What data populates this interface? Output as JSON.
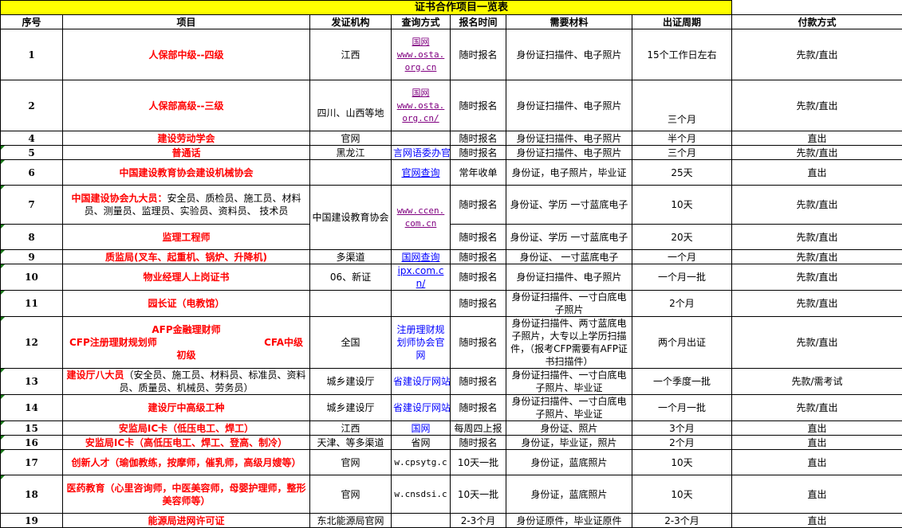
{
  "title": "证书合作项目一览表",
  "headers": [
    "序号",
    "项目",
    "发证机构",
    "查询方式",
    "报名时间",
    "需要材料",
    "出证周期",
    "付款方式"
  ],
  "colors": {
    "title_bg": "#ffff00",
    "item_red": "#ff0000",
    "link_blue": "#0000ff",
    "link_purple": "#800080"
  },
  "rows": [
    {
      "no": "1",
      "item": "人保部中级--四级",
      "org": "江西",
      "query": [
        "国网",
        "www.osta.",
        "org.cn"
      ],
      "qstyle": "lp",
      "time": "随时报名",
      "material": "身份证扫描件、电子照片",
      "cycle": "15个工作日左右",
      "pay": "先款/直出"
    },
    {
      "no": "2",
      "item": "人保部高级--三级",
      "org": "四川、山西等地",
      "query": [
        "国网",
        "www.osta.",
        "org.cn/"
      ],
      "qstyle": "lp",
      "time": "随时报名",
      "material": "身份证扫描件、电子照片",
      "cycle": "三个月",
      "pay": "先款/直出"
    },
    {
      "no": "4",
      "item": "建设劳动学会",
      "org": "官网",
      "query": [],
      "time": "随时报名",
      "material": "身份证扫描件、电子照片",
      "cycle": "半个月",
      "pay": "直出"
    },
    {
      "no": "5",
      "item": "普通话",
      "org": "黑龙江",
      "query": [
        "言网语委办官"
      ],
      "qstyle": "bl",
      "time": "随时报名",
      "material": "身份证扫描件、电子照片",
      "cycle": "三个月",
      "pay": "先款/直出"
    },
    {
      "no": "6",
      "item": "中国建设教育协会建设机械协会",
      "org": "",
      "query": [
        "官网查询"
      ],
      "qstyle": "lb",
      "time": "常年收单",
      "material": "身份证，电子照片，毕业证",
      "cycle": "25天",
      "pay": "直出"
    },
    {
      "no": "7",
      "item": "中国建设协会九大员：",
      "item_extra": "安全员、质检员、施工员、材料员、测量员、监理员、实验员、资料员、 技术员",
      "org": "中国建设教育协会",
      "query": [
        "www.ccen.",
        "com.cn"
      ],
      "qstyle": "lp",
      "time": "随时报名",
      "material": "身份证、学历 一寸蓝底电子",
      "cycle": "10天",
      "pay": "先款/直出"
    },
    {
      "no": "8",
      "item": "监理工程师",
      "time": "随时报名",
      "material": "身份证、学历 一寸蓝底电子",
      "cycle": "20天",
      "pay": "先款/直出"
    },
    {
      "no": "9",
      "item": "质监局(叉车、起重机、锅炉、升降机)",
      "org": "多渠道",
      "query": [
        "国网查询"
      ],
      "qstyle": "lb",
      "time": "随时报名",
      "material": "身份证、 一寸蓝底电子",
      "cycle": "一个月",
      "pay": "先款/直出"
    },
    {
      "no": "10",
      "item": "物业经理人上岗证书",
      "org": "06、新证",
      "query": [
        "ipx.com.cn/"
      ],
      "qstyle": "lb",
      "time": "随时报名",
      "material": "身份证扫描件、电子照片",
      "cycle": "一个月一批",
      "pay": "先款/直出"
    },
    {
      "no": "11",
      "item": "园长证（电教馆）",
      "org": "",
      "query": [],
      "time": "随时报名",
      "material": "身份证扫描件、一寸白底电子照片",
      "cycle": "2个月",
      "pay": "先款/直出"
    },
    {
      "no": "12",
      "item": "AFP金融理财师",
      "item_line2_left": "CFP注册理财规划师",
      "item_line2_right": "CFA中级",
      "item_line3": "初级",
      "org": "全国",
      "query": [
        "注册理财规划师协会官网"
      ],
      "qstyle": "bl",
      "time": "随时报名",
      "material": "身份证扫描件、两寸蓝底电子照片，大专以上学历扫描件，（报考CFP需要有AFP证书扫描件）",
      "cycle": "两个月出证",
      "pay": "先款/直出"
    },
    {
      "no": "13",
      "item": "建设厅八大员",
      "item_extra": "（安全员、施工员、材料员、标准员、资料员、质量员、机械员、劳务员）",
      "org": "城乡建设厅",
      "query": [
        "省建设厅网站"
      ],
      "qstyle": "bl",
      "time": "随时报名",
      "material": "身份证扫描件、一寸白底电子照片、毕业证",
      "cycle": "一个季度一批",
      "pay": "先款/需考试"
    },
    {
      "no": "14",
      "item": "建设厅中高级工种",
      "org": "城乡建设厅",
      "query": [
        "省建设厅网站"
      ],
      "qstyle": "bl",
      "time": "随时报名",
      "material": "身份证扫描件、一寸白底电子照片、毕业证",
      "cycle": "一个月一批",
      "pay": "先款/直出"
    },
    {
      "no": "15",
      "item": "安监局IC卡（低压电工、焊工）",
      "org": "江西",
      "query": [
        "国网"
      ],
      "qstyle": "bl",
      "time": "每周四上报",
      "material": "身份证、照片",
      "cycle": "3个月",
      "pay": "直出"
    },
    {
      "no": "16",
      "item": "安监局IC卡（高低压电工、焊工、登高、制冷）",
      "org": "天津、等多渠道",
      "query": [
        "省网"
      ],
      "qstyle": "",
      "time": "随时报名",
      "material": "身份证，毕业证，照片",
      "cycle": "2个月",
      "pay": "直出"
    },
    {
      "no": "17",
      "item": "创新人才（瑜伽教练，按摩师，催乳师，高级月嫂等）",
      "org": "官网",
      "query": [
        "w.cpsytg.c"
      ],
      "qstyle": "mono",
      "time": "10天一批",
      "material": "身份证，蓝底照片",
      "cycle": "10天",
      "pay": "直出"
    },
    {
      "no": "18",
      "item": "医药教育（心里咨询师，中医美容师，母婴护理师，整形美容师等）",
      "org": "官网",
      "query": [
        "w.cnsdsi.c"
      ],
      "qstyle": "mono",
      "time": "10天一批",
      "material": "身份证，蓝底照片",
      "cycle": "10天",
      "pay": "直出"
    },
    {
      "no": "19",
      "item": "能源局进网许可证",
      "org": "东北能源局官网",
      "query": [],
      "time": "2-3个月",
      "material": "身份证原件，毕业证原件",
      "cycle": "2-3个月",
      "pay": "直出"
    }
  ]
}
